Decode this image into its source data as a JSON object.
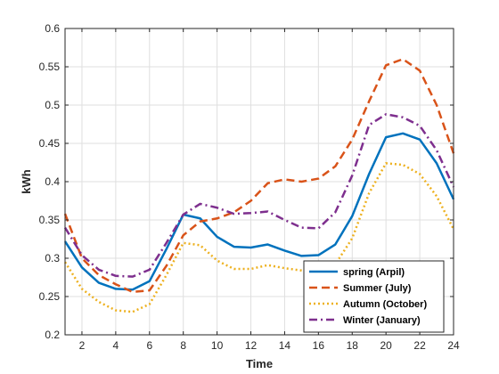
{
  "chart_data": {
    "type": "line",
    "title": "",
    "xlabel": "Time",
    "ylabel": "kWh",
    "xlim": [
      1,
      24
    ],
    "ylim": [
      0.2,
      0.6
    ],
    "xticks": [
      2,
      4,
      6,
      8,
      10,
      12,
      14,
      16,
      18,
      20,
      22,
      24
    ],
    "yticks": [
      0.2,
      0.25,
      0.3,
      0.35,
      0.4,
      0.45,
      0.5,
      0.55,
      0.6
    ],
    "ytick_labels": [
      "0.2",
      "0.25",
      "0.3",
      "0.35",
      "0.4",
      "0.45",
      "0.5",
      "0.55",
      "0.6"
    ],
    "grid": true,
    "legend_position": "bottom-right",
    "x": [
      1,
      2,
      3,
      4,
      5,
      6,
      7,
      8,
      9,
      10,
      11,
      12,
      13,
      14,
      15,
      16,
      17,
      18,
      19,
      20,
      21,
      22,
      23,
      24
    ],
    "series": [
      {
        "name": "spring (Arpil)",
        "color": "#0072BD",
        "style": "solid",
        "values": [
          0.322,
          0.288,
          0.268,
          0.26,
          0.259,
          0.27,
          0.312,
          0.357,
          0.352,
          0.328,
          0.315,
          0.314,
          0.318,
          0.31,
          0.303,
          0.304,
          0.318,
          0.355,
          0.41,
          0.458,
          0.463,
          0.455,
          0.424,
          0.377
        ]
      },
      {
        "name": "Summer (July)",
        "color": "#D95319",
        "style": "dashed",
        "values": [
          0.358,
          0.3,
          0.278,
          0.266,
          0.256,
          0.258,
          0.29,
          0.33,
          0.348,
          0.352,
          0.36,
          0.375,
          0.398,
          0.403,
          0.4,
          0.404,
          0.42,
          0.455,
          0.505,
          0.552,
          0.56,
          0.545,
          0.5,
          0.437
        ]
      },
      {
        "name": "Autumn (October)",
        "color": "#EDB120",
        "style": "dotted",
        "values": [
          0.295,
          0.26,
          0.243,
          0.232,
          0.23,
          0.24,
          0.278,
          0.32,
          0.317,
          0.297,
          0.286,
          0.286,
          0.291,
          0.287,
          0.284,
          0.28,
          0.292,
          0.326,
          0.385,
          0.424,
          0.422,
          0.41,
          0.381,
          0.338
        ]
      },
      {
        "name": "Winter (January)",
        "color": "#7E2F8E",
        "style": "dashdot",
        "values": [
          0.34,
          0.304,
          0.285,
          0.277,
          0.276,
          0.285,
          0.32,
          0.357,
          0.371,
          0.366,
          0.358,
          0.359,
          0.361,
          0.35,
          0.34,
          0.339,
          0.36,
          0.408,
          0.474,
          0.488,
          0.484,
          0.473,
          0.441,
          0.393
        ]
      }
    ]
  }
}
